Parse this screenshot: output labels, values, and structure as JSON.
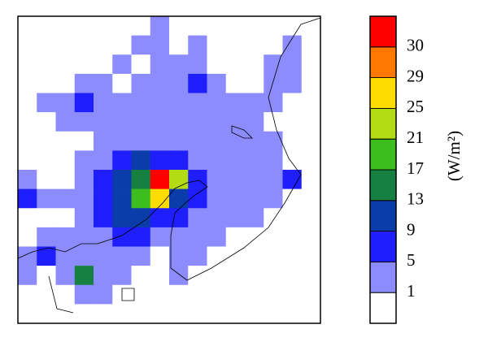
{
  "chart_data": {
    "type": "heatmap",
    "values": [
      [
        0,
        0,
        0,
        0,
        0,
        0,
        0,
        3,
        0,
        0,
        0,
        0,
        0,
        0,
        0,
        0
      ],
      [
        0,
        0,
        0,
        0,
        0,
        0,
        3,
        3,
        0,
        3,
        0,
        0,
        0,
        0,
        3,
        0
      ],
      [
        0,
        0,
        0,
        0,
        0,
        3,
        0,
        3,
        3,
        3,
        0,
        0,
        0,
        3,
        3,
        0
      ],
      [
        0,
        0,
        0,
        3,
        3,
        0,
        3,
        3,
        3,
        7,
        3,
        0,
        0,
        3,
        3,
        0
      ],
      [
        0,
        3,
        3,
        7,
        3,
        3,
        3,
        3,
        3,
        3,
        3,
        3,
        3,
        3,
        0,
        0
      ],
      [
        0,
        0,
        3,
        3,
        3,
        3,
        3,
        3,
        3,
        3,
        3,
        3,
        3,
        0,
        0,
        0
      ],
      [
        0,
        0,
        0,
        0,
        3,
        3,
        3,
        3,
        3,
        3,
        3,
        3,
        3,
        3,
        0,
        0
      ],
      [
        0,
        0,
        0,
        3,
        3,
        7,
        11,
        7,
        7,
        3,
        3,
        3,
        3,
        3,
        0,
        0
      ],
      [
        3,
        0,
        0,
        3,
        7,
        11,
        15,
        31,
        23,
        7,
        3,
        3,
        3,
        3,
        7,
        0
      ],
      [
        7,
        3,
        3,
        3,
        7,
        11,
        19,
        27,
        11,
        7,
        3,
        3,
        3,
        3,
        0,
        0
      ],
      [
        0,
        0,
        0,
        3,
        7,
        11,
        11,
        7,
        7,
        3,
        3,
        3,
        3,
        0,
        0,
        0
      ],
      [
        0,
        3,
        3,
        3,
        3,
        7,
        7,
        3,
        3,
        3,
        3,
        0,
        0,
        0,
        0,
        0
      ],
      [
        3,
        7,
        3,
        3,
        3,
        3,
        3,
        0,
        3,
        3,
        0,
        0,
        0,
        0,
        0,
        0
      ],
      [
        3,
        0,
        3,
        15,
        3,
        3,
        0,
        0,
        3,
        0,
        0,
        0,
        0,
        0,
        0,
        0
      ],
      [
        0,
        0,
        0,
        3,
        3,
        0,
        0,
        0,
        0,
        0,
        0,
        0,
        0,
        0,
        0,
        0
      ],
      [
        0,
        0,
        0,
        0,
        0,
        0,
        0,
        0,
        0,
        0,
        0,
        0,
        0,
        0,
        0,
        0
      ]
    ],
    "levels": [
      1,
      5,
      9,
      13,
      17,
      21,
      25,
      29,
      30
    ],
    "colors": [
      "#ffffff",
      "#8c8cff",
      "#1e1eff",
      "#0a3caa",
      "#168040",
      "#3cbe1e",
      "#b4dc14",
      "#ffdc00",
      "#ff7800",
      "#ff0000"
    ],
    "colorbar_label": "(W/m²)"
  }
}
